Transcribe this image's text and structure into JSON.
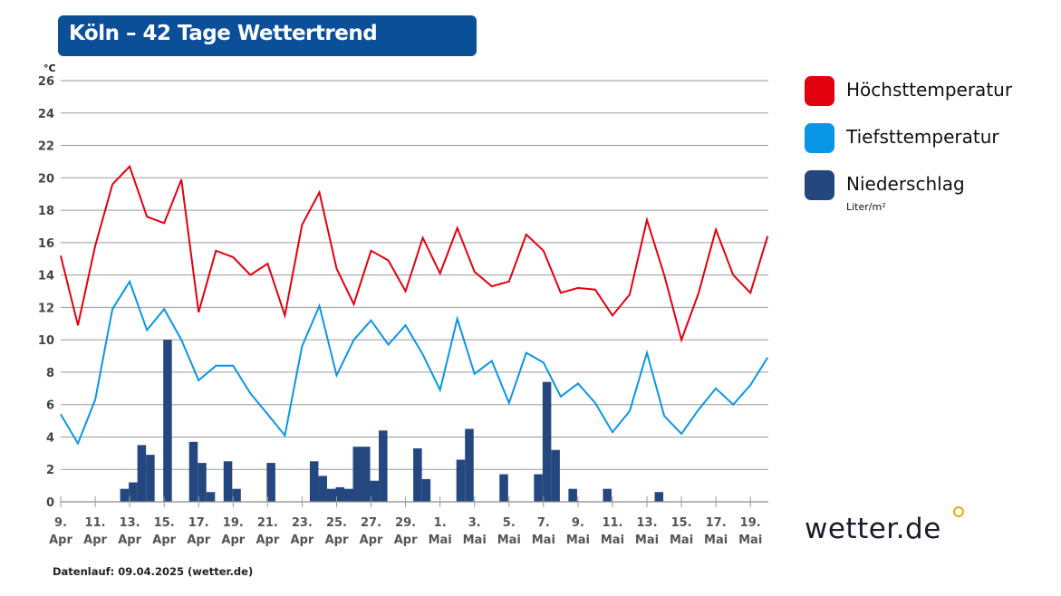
{
  "title": "Köln – 42 Tage Wettertrend",
  "footer": "Datenlauf: 09.04.2025 (wetter.de)",
  "logo": "wetter.de",
  "legend": {
    "items": [
      {
        "label": "Höchsttemperatur",
        "color": "#e3000f"
      },
      {
        "label": "Tiefsttemperatur",
        "color": "#0a96e6"
      },
      {
        "label": "Niederschlag",
        "color": "#23477e"
      }
    ],
    "precip_unit": "Liter/m²"
  },
  "chart_data": {
    "type": "line+bar",
    "ylabel": "°C",
    "ylim": [
      0,
      26
    ],
    "yticks": [
      0,
      2,
      4,
      6,
      8,
      10,
      12,
      14,
      16,
      18,
      20,
      22,
      24,
      26
    ],
    "grid": true,
    "legend_position": "right",
    "x_start": "2025-04-09",
    "x_end": "2025-05-20",
    "xtick_labels": [
      [
        "9.",
        "Apr"
      ],
      [
        "11.",
        "Apr"
      ],
      [
        "13.",
        "Apr"
      ],
      [
        "15.",
        "Apr"
      ],
      [
        "17.",
        "Apr"
      ],
      [
        "19.",
        "Apr"
      ],
      [
        "21.",
        "Apr"
      ],
      [
        "23.",
        "Apr"
      ],
      [
        "25.",
        "Apr"
      ],
      [
        "27.",
        "Apr"
      ],
      [
        "29.",
        "Apr"
      ],
      [
        "1.",
        "Mai"
      ],
      [
        "3.",
        "Mai"
      ],
      [
        "5.",
        "Mai"
      ],
      [
        "7.",
        "Mai"
      ],
      [
        "9.",
        "Mai"
      ],
      [
        "11.",
        "Mai"
      ],
      [
        "13.",
        "Mai"
      ],
      [
        "15.",
        "Mai"
      ],
      [
        "17.",
        "Mai"
      ],
      [
        "19.",
        "Mai"
      ]
    ],
    "series": [
      {
        "name": "Höchsttemperatur",
        "type": "line",
        "color": "#e3000f",
        "values": [
          15.2,
          10.9,
          15.8,
          19.6,
          20.7,
          17.6,
          17.2,
          19.9,
          11.7,
          15.5,
          15.1,
          14.0,
          14.7,
          11.5,
          17.1,
          19.1,
          14.4,
          12.2,
          15.5,
          14.9,
          13.0,
          16.3,
          14.1,
          16.9,
          14.2,
          13.3,
          13.6,
          16.5,
          15.5,
          12.9,
          13.2,
          13.1,
          11.5,
          12.8,
          17.4,
          14.0,
          10.0,
          12.9,
          16.8,
          14.0,
          12.9,
          16.4
        ]
      },
      {
        "name": "Tiefsttemperatur",
        "type": "line",
        "color": "#0a96e6",
        "values": [
          5.4,
          3.6,
          6.3,
          11.9,
          13.6,
          10.6,
          11.9,
          10.0,
          7.5,
          8.4,
          8.4,
          6.7,
          5.4,
          4.1,
          9.6,
          12.1,
          7.8,
          10.0,
          11.2,
          9.7,
          10.9,
          9.1,
          6.9,
          11.3,
          7.9,
          8.7,
          6.1,
          9.2,
          8.6,
          6.5,
          7.3,
          6.1,
          4.3,
          5.6,
          9.2,
          5.3,
          4.2,
          5.7,
          7.0,
          6.0,
          7.2,
          8.9
        ]
      },
      {
        "name": "Niederschlag",
        "type": "bar",
        "color": "#23477e",
        "resolution": "12h",
        "values": [
          0,
          0,
          0,
          0,
          0,
          0,
          0,
          0.8,
          1.2,
          3.5,
          2.9,
          0,
          10.0,
          0,
          0,
          3.7,
          2.4,
          0.6,
          0,
          2.5,
          0.8,
          0,
          0,
          0,
          2.4,
          0,
          0,
          0,
          0,
          2.5,
          1.6,
          0.8,
          0.9,
          0.8,
          3.4,
          3.4,
          1.3,
          4.4,
          0,
          0,
          0,
          3.3,
          1.4,
          0,
          0,
          0,
          2.6,
          4.5,
          0,
          0,
          0,
          1.7,
          0,
          0,
          0,
          1.7,
          7.4,
          3.2,
          0,
          0.8,
          0,
          0,
          0,
          0.8,
          0,
          0,
          0,
          0,
          0,
          0.6,
          0,
          0,
          0,
          0,
          0,
          0,
          0,
          0,
          0,
          0,
          0,
          0,
          0,
          0
        ]
      }
    ]
  }
}
